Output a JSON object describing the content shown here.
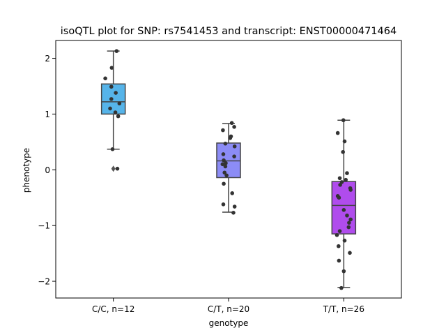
{
  "chart_data": {
    "type": "box",
    "title": "isoQTL plot for SNP: rs7541453 and transcript: ENST00000471464",
    "xlabel": "genotype",
    "ylabel": "phenotype",
    "ylim": [
      -2.3,
      2.32
    ],
    "yticks": [
      2,
      1,
      0,
      -1,
      -2
    ],
    "ytick_labels": [
      "2",
      "1",
      "0",
      "−1",
      "−2"
    ],
    "categories": [
      "C/C, n=12",
      "C/T, n=20",
      "T/T, n=26"
    ],
    "colors": [
      "#56b4e9",
      "#8c8cf6",
      "#b04ced"
    ],
    "boxes": [
      {
        "q1": 1.0,
        "median": 1.22,
        "q3": 1.54,
        "whisker_low": 0.37,
        "whisker_high": 2.13,
        "outliers": [
          0.02
        ]
      },
      {
        "q1": -0.14,
        "median": 0.16,
        "q3": 0.48,
        "whisker_low": -0.76,
        "whisker_high": 0.83,
        "outliers": []
      },
      {
        "q1": -1.15,
        "median": -0.64,
        "q3": -0.21,
        "whisker_low": -2.11,
        "whisker_high": 0.89,
        "outliers": []
      }
    ],
    "points": [
      [
        [
          -0.2,
          1.64
        ],
        [
          -0.05,
          1.49
        ],
        [
          0.08,
          2.13
        ],
        [
          -0.04,
          1.83
        ],
        [
          0.06,
          1.38
        ],
        [
          -0.05,
          1.27
        ],
        [
          0.15,
          1.19
        ],
        [
          -0.08,
          1.1
        ],
        [
          0.05,
          1.03
        ],
        [
          0.12,
          0.96
        ],
        [
          -0.02,
          0.37
        ],
        [
          0.1,
          0.02
        ]
      ],
      [
        [
          0.08,
          0.84
        ],
        [
          -0.14,
          0.71
        ],
        [
          0.14,
          0.77
        ],
        [
          0.06,
          0.6
        ],
        [
          0.04,
          0.57
        ],
        [
          -0.08,
          0.47
        ],
        [
          0.15,
          0.42
        ],
        [
          -0.13,
          0.28
        ],
        [
          0.14,
          0.24
        ],
        [
          -0.12,
          0.17
        ],
        [
          -0.07,
          0.12
        ],
        [
          -0.15,
          0.1
        ],
        [
          -0.08,
          0.06
        ],
        [
          -0.1,
          -0.05
        ],
        [
          -0.12,
          -0.25
        ],
        [
          0.09,
          -0.42
        ],
        [
          -0.13,
          -0.62
        ],
        [
          0.15,
          -0.66
        ],
        [
          0.12,
          -0.77
        ],
        [
          -0.05,
          -0.1
        ]
      ],
      [
        [
          -0.01,
          0.89
        ],
        [
          -0.15,
          0.66
        ],
        [
          0.02,
          0.51
        ],
        [
          -0.02,
          0.32
        ],
        [
          0.08,
          -0.06
        ],
        [
          -0.1,
          -0.15
        ],
        [
          0.05,
          -0.18
        ],
        [
          -0.09,
          -0.27
        ],
        [
          0.16,
          -0.33
        ],
        [
          0.17,
          -0.36
        ],
        [
          -0.15,
          -0.47
        ],
        [
          -0.12,
          -0.5
        ],
        [
          0.0,
          -0.72
        ],
        [
          0.08,
          -0.82
        ],
        [
          0.17,
          -0.89
        ],
        [
          0.13,
          -0.95
        ],
        [
          0.12,
          -1.03
        ],
        [
          -0.1,
          -1.1
        ],
        [
          -0.17,
          -1.17
        ],
        [
          0.02,
          -1.27
        ],
        [
          -0.13,
          -1.37
        ],
        [
          0.15,
          -1.49
        ],
        [
          -0.12,
          -1.63
        ],
        [
          0.0,
          -1.82
        ],
        [
          -0.06,
          -2.12
        ],
        [
          -0.05,
          -0.22
        ]
      ]
    ]
  }
}
